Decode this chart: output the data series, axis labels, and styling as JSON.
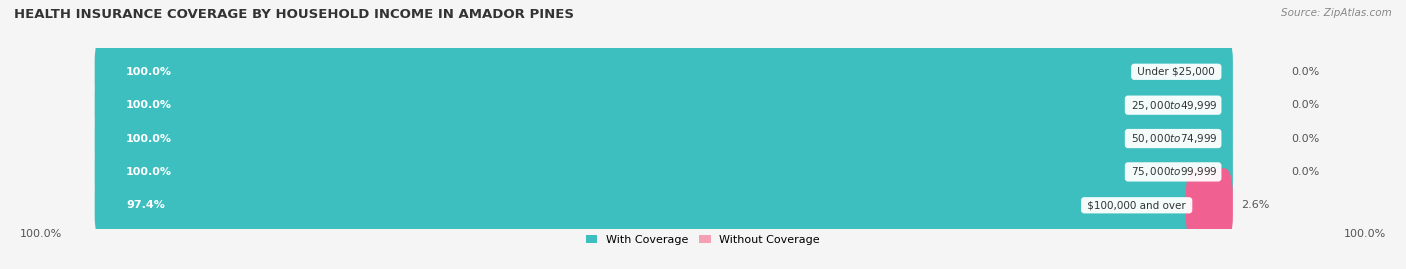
{
  "title": "HEALTH INSURANCE COVERAGE BY HOUSEHOLD INCOME IN AMADOR PINES",
  "source": "Source: ZipAtlas.com",
  "categories": [
    "Under $25,000",
    "$25,000 to $49,999",
    "$50,000 to $74,999",
    "$75,000 to $99,999",
    "$100,000 and over"
  ],
  "with_coverage": [
    100.0,
    100.0,
    100.0,
    100.0,
    97.4
  ],
  "without_coverage": [
    0.0,
    0.0,
    0.0,
    0.0,
    2.6
  ],
  "coverage_color": "#3dbfbf",
  "no_coverage_color": "#f4a0b4",
  "no_coverage_color_last": "#f06090",
  "bar_bg_color": "#e8e8ea",
  "fig_bg_color": "#f5f5f5",
  "title_fontsize": 9.5,
  "source_fontsize": 7.5,
  "bar_label_fontsize": 8,
  "cat_label_fontsize": 7.5,
  "pct_label_fontsize": 8,
  "legend_fontsize": 8,
  "bottom_left_label": "100.0%",
  "bottom_right_label": "100.0%"
}
